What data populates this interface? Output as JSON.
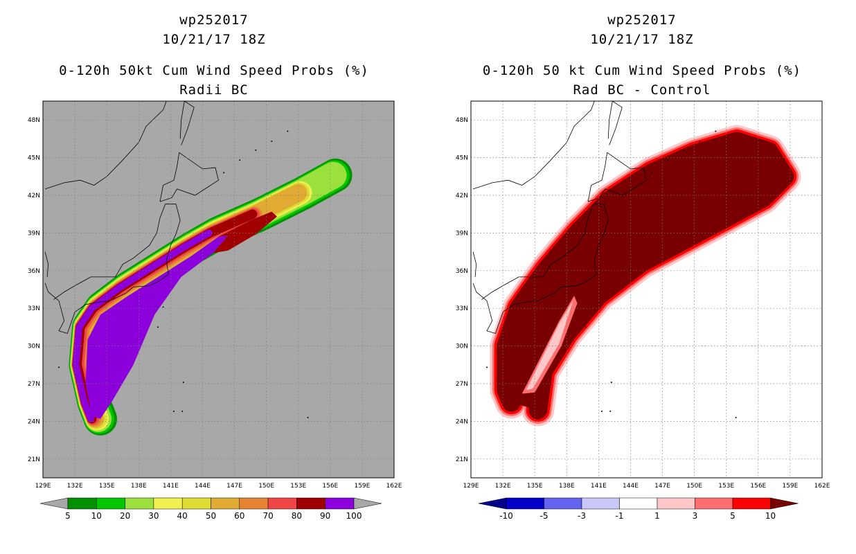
{
  "chart_data": [
    {
      "type": "heatmap",
      "storm_id": "wp252017",
      "datetime": "10/21/17 18Z",
      "title": "0-120h 50kt Cum Wind Speed Probs (%)",
      "subtitle": "Radii BC",
      "x_ticks": [
        "129E",
        "132E",
        "135E",
        "138E",
        "141E",
        "144E",
        "147E",
        "150E",
        "153E",
        "156E",
        "159E",
        "162E"
      ],
      "y_ticks": [
        "48N",
        "45N",
        "42N",
        "39N",
        "36N",
        "33N",
        "30N",
        "27N",
        "24N",
        "21N"
      ],
      "xlim": [
        129,
        162
      ],
      "ylim": [
        19.5,
        49.5
      ],
      "background": "#a8a8a8",
      "colorbar": {
        "boundaries": [
          "5",
          "10",
          "20",
          "30",
          "40",
          "50",
          "60",
          "70",
          "80",
          "90",
          "100"
        ],
        "colors": [
          "#009000",
          "#00c800",
          "#9be03c",
          "#f0f050",
          "#dcdc32",
          "#e1aa32",
          "#e68232",
          "#f04646",
          "#a00000",
          "#8c00dc"
        ],
        "end_colors": [
          "#a8a8a8",
          "#a8a8a8"
        ]
      },
      "track_core": [
        [
          134.4,
          24.2
        ],
        [
          133.8,
          25.5
        ],
        [
          133.0,
          28.5
        ],
        [
          133.3,
          31.5
        ],
        [
          134.5,
          33.0
        ],
        [
          137,
          34.6
        ],
        [
          140,
          36.2
        ],
        [
          143,
          37.8
        ],
        [
          145.5,
          39.0
        ],
        [
          149.5,
          40.5
        ],
        [
          153.5,
          42.2
        ],
        [
          156.5,
          43.6
        ]
      ]
    },
    {
      "type": "heatmap",
      "storm_id": "wp252017",
      "datetime": "10/21/17 18Z",
      "title": "0-120h 50 kt Cum Wind Speed Probs (%)",
      "subtitle": "Rad BC - Control",
      "x_ticks": [
        "129E",
        "132E",
        "135E",
        "138E",
        "141E",
        "144E",
        "147E",
        "150E",
        "153E",
        "156E",
        "159E",
        "162E"
      ],
      "y_ticks": [
        "48N",
        "45N",
        "42N",
        "39N",
        "36N",
        "33N",
        "30N",
        "27N",
        "24N",
        "21N"
      ],
      "xlim": [
        129,
        162
      ],
      "ylim": [
        19.5,
        49.5
      ],
      "background": "#ffffff",
      "colorbar": {
        "boundaries": [
          "-10",
          "-5",
          "-3",
          "-1",
          "1",
          "3",
          "5",
          "10"
        ],
        "colors": [
          "#0000c8",
          "#6464f0",
          "#c8c8fa",
          "#ffffff",
          "#ffc8c8",
          "#ff6e6e",
          "#ff0000"
        ],
        "end_colors": [
          "#00008c",
          "#780000"
        ]
      }
    }
  ]
}
